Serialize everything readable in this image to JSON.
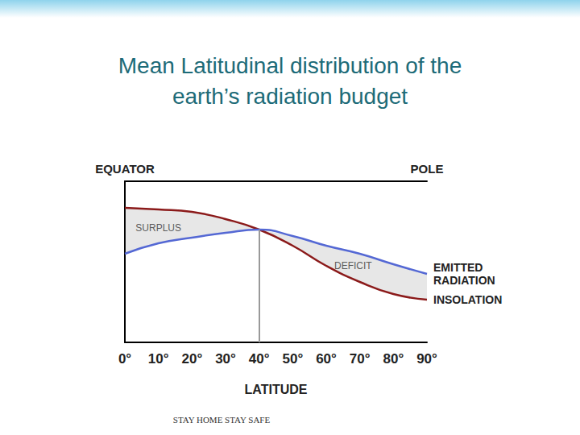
{
  "chart_data": {
    "type": "line",
    "title": "Mean Latitudinal distribution of the earth’s radiation budget",
    "footer": "STAY HOME STAY SAFE",
    "x_label": "LATITUDE",
    "x": [
      0,
      10,
      20,
      30,
      40,
      50,
      60,
      70,
      80,
      90
    ],
    "series": [
      {
        "name": "INSOLATION",
        "color": "#8b1a1a",
        "values": [
          83.5,
          82.5,
          81,
          76.5,
          70,
          60,
          47.5,
          37.5,
          30,
          26.5
        ]
      },
      {
        "name": "EMITTED RADIATION",
        "color": "#5468d4",
        "values": [
          55,
          61.5,
          65,
          68,
          70,
          66,
          60,
          55,
          48.5,
          42.5
        ]
      }
    ],
    "xlim": [
      0,
      90
    ],
    "xticks": [
      {
        "value": 0,
        "label": "0°"
      },
      {
        "value": 10,
        "label": "10°"
      },
      {
        "value": 20,
        "label": "20°"
      },
      {
        "value": 30,
        "label": "30°"
      },
      {
        "value": 40,
        "label": "40°"
      },
      {
        "value": 50,
        "label": "50°"
      },
      {
        "value": 60,
        "label": "60°"
      },
      {
        "value": 70,
        "label": "70°"
      },
      {
        "value": 80,
        "label": "80°"
      },
      {
        "value": 90,
        "label": "90°"
      }
    ],
    "ylim": [
      0,
      100
    ],
    "top_ticks": [
      {
        "value": 0,
        "label": "EQUATOR"
      },
      {
        "value": 90,
        "label": "POLE"
      }
    ],
    "annotations": [
      {
        "text": "SURPLUS",
        "x": 10,
        "y": 71
      },
      {
        "text": "DEFICIT",
        "x": 68,
        "y": 47.5
      }
    ],
    "vertical_line_x": 40,
    "tick_labels": "x",
    "grid": false
  }
}
